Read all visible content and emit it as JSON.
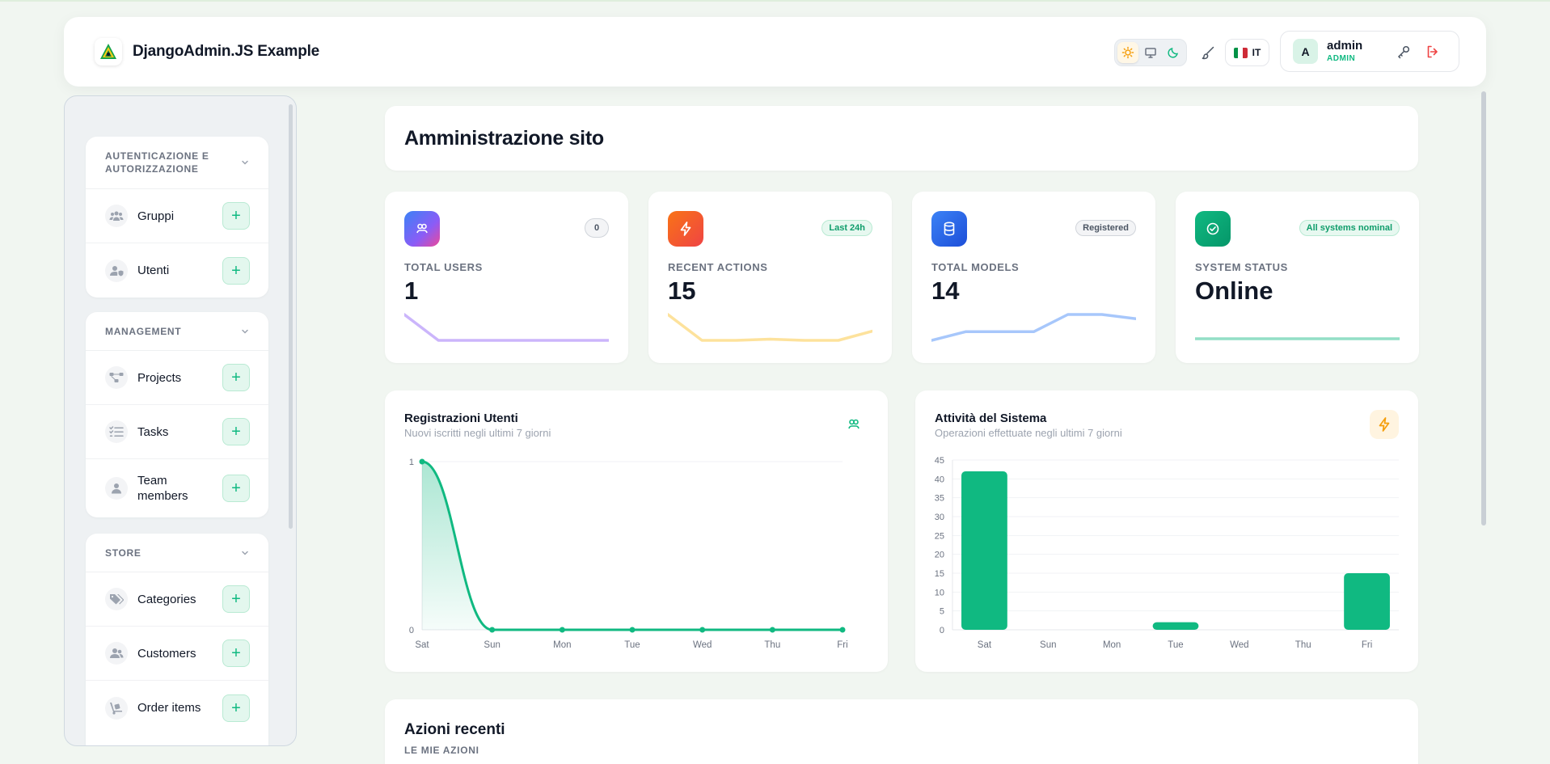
{
  "app": {
    "title": "DjangoAdmin.JS Example",
    "logo_icon": "django-admin-logo-icon"
  },
  "header": {
    "theme_options": [
      "light",
      "system",
      "dark"
    ],
    "theme_selected": "light",
    "language": "IT",
    "language_flag_colors": [
      "#009246",
      "#ffffff",
      "#ce2b37"
    ],
    "user": {
      "initial": "A",
      "name": "admin",
      "role": "ADMIN"
    }
  },
  "sidebar": {
    "groups": [
      {
        "title": "AUTENTICAZIONE E AUTORIZZAZIONE",
        "items": [
          {
            "label": "Gruppi",
            "icon": "users-group-icon"
          },
          {
            "label": "Utenti",
            "icon": "user-shield-icon"
          }
        ]
      },
      {
        "title": "MANAGEMENT",
        "items": [
          {
            "label": "Projects",
            "icon": "project-diagram-icon"
          },
          {
            "label": "Tasks",
            "icon": "tasks-icon"
          },
          {
            "label": "Team members",
            "icon": "user-icon"
          }
        ]
      },
      {
        "title": "STORE",
        "items": [
          {
            "label": "Categories",
            "icon": "tags-icon"
          },
          {
            "label": "Customers",
            "icon": "customers-icon"
          },
          {
            "label": "Order items",
            "icon": "dolly-icon"
          }
        ]
      }
    ]
  },
  "main": {
    "page_title": "Amministrazione sito",
    "stats": [
      {
        "label": "TOTAL USERS",
        "value": "1",
        "badge": "0",
        "icon": "users-icon",
        "color": "#8b5cf6",
        "spark": [
          2,
          0,
          0,
          0,
          0,
          0,
          0
        ]
      },
      {
        "label": "RECENT ACTIONS",
        "value": "15",
        "badge": "Last 24h",
        "icon": "bolt-icon",
        "color": "#fbbf24",
        "spark": [
          42,
          0,
          0,
          2,
          0,
          0,
          15
        ]
      },
      {
        "label": "TOTAL MODELS",
        "value": "14",
        "badge": "Registered",
        "icon": "database-icon",
        "color": "#3b82f6",
        "spark": [
          10,
          11,
          11,
          11,
          13,
          13,
          12.5
        ]
      },
      {
        "label": "SYSTEM STATUS",
        "value": "Online",
        "badge": "All systems nominal",
        "icon": "check-circle-icon",
        "color": "#10b981",
        "spark": [
          1,
          1,
          1,
          1,
          1,
          1,
          1
        ]
      }
    ],
    "charts": [
      {
        "title": "Registrazioni Utenti",
        "subtitle": "Nuovi iscritti negli ultimi 7 giorni",
        "icon": "users-icon",
        "chart_data": {
          "type": "area",
          "categories": [
            "Sat",
            "Sun",
            "Mon",
            "Tue",
            "Wed",
            "Thu",
            "Fri"
          ],
          "values": [
            1,
            0,
            0,
            0,
            0,
            0,
            0
          ],
          "ylim": [
            0,
            1
          ],
          "yticks": [
            "0",
            "1"
          ],
          "color": "#10b981"
        }
      },
      {
        "title": "Attività del Sistema",
        "subtitle": "Operazioni effettuate negli ultimi 7 giorni",
        "icon": "bolt-icon",
        "chart_data": {
          "type": "bar",
          "categories": [
            "Sat",
            "Sun",
            "Mon",
            "Tue",
            "Wed",
            "Thu",
            "Fri"
          ],
          "values": [
            42,
            0,
            0,
            2,
            0,
            0,
            15
          ],
          "ylim": [
            0,
            45
          ],
          "yticks": [
            "0",
            "5",
            "10",
            "15",
            "20",
            "25",
            "30",
            "35",
            "40",
            "45"
          ],
          "color": "#10b981"
        }
      }
    ],
    "recent": {
      "title": "Azioni recenti",
      "subtitle": "LE MIE AZIONI"
    }
  }
}
